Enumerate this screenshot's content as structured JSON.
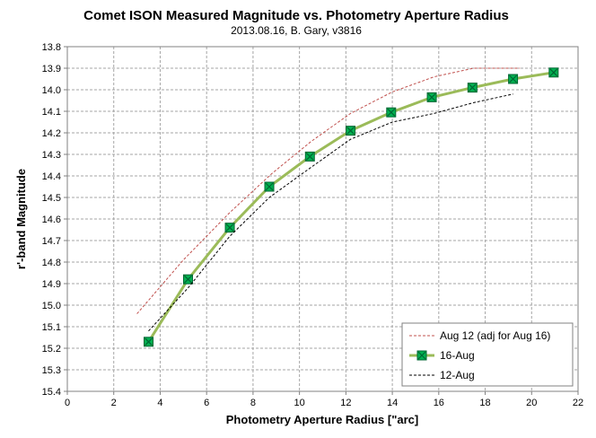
{
  "chart_data": {
    "type": "line",
    "title": "Comet ISON Measured Magnitude vs. Photometry Aperture Radius",
    "subtitle": "2013.08.16, B. Gary, v3816",
    "xlabel": "Photometry Aperture Radius [\"arc]",
    "ylabel": "r'-band Magnitude",
    "xlim": [
      0,
      22
    ],
    "ylim": [
      13.8,
      15.4
    ],
    "y_inverted": true,
    "x_ticks": [
      0,
      2,
      4,
      6,
      8,
      10,
      12,
      14,
      16,
      18,
      20,
      22
    ],
    "y_ticks": [
      13.8,
      13.9,
      14.0,
      14.1,
      14.2,
      14.3,
      14.4,
      14.5,
      14.6,
      14.7,
      14.8,
      14.9,
      15.0,
      15.1,
      15.2,
      15.3,
      15.4
    ],
    "grid": true,
    "legend_position": "bottom-right",
    "series": [
      {
        "name": "Aug 12 (adj for Aug 16)",
        "style": "dashed",
        "color": "#c0504d",
        "x": [
          3.0,
          5.0,
          7.0,
          8.8,
          10.5,
          12.2,
          14.0,
          15.8,
          17.5,
          19.5
        ],
        "y": [
          15.04,
          14.79,
          14.57,
          14.39,
          14.24,
          14.11,
          14.01,
          13.94,
          13.9,
          13.9
        ]
      },
      {
        "name": "16-Aug",
        "style": "solid-marker",
        "color": "#9bbb59",
        "x": [
          3.5,
          5.2,
          7.0,
          8.7,
          10.45,
          12.2,
          13.95,
          15.7,
          17.45,
          19.2,
          20.95
        ],
        "y": [
          15.17,
          14.88,
          14.64,
          14.45,
          14.31,
          14.19,
          14.105,
          14.035,
          13.99,
          13.95,
          13.92
        ]
      },
      {
        "name": "12-Aug",
        "style": "dashed",
        "color": "#000000",
        "x": [
          3.5,
          5.2,
          7.0,
          8.7,
          10.5,
          12.2,
          14.0,
          15.8,
          17.5,
          19.2
        ],
        "y": [
          15.12,
          14.92,
          14.68,
          14.5,
          14.36,
          14.23,
          14.15,
          14.11,
          14.06,
          14.02
        ]
      }
    ]
  },
  "colors": {
    "plot_border": "#808080",
    "grid": "#a6a6a6",
    "marker_fill": "#00b050",
    "marker_stroke": "#006633"
  }
}
